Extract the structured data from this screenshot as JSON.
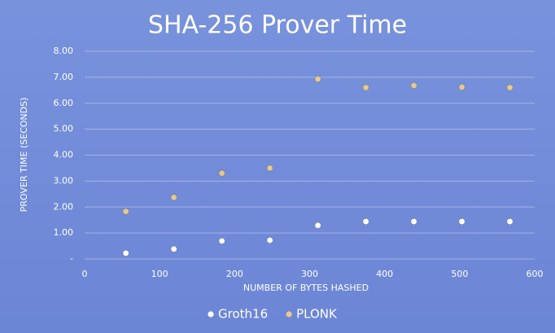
{
  "chart_data": {
    "type": "scatter",
    "title": "SHA-256 Prover Time",
    "x_label": "NUMBER OF BYTES HASHED",
    "y_label": "PROVER TIME (SECONDS)",
    "xlim": [
      0,
      600
    ],
    "xticks": [
      0,
      100,
      200,
      300,
      400,
      500,
      600
    ],
    "ylim": [
      0,
      8
    ],
    "yticks": [
      {
        "value": 0,
        "label": "-"
      },
      {
        "value": 1,
        "label": "1.00"
      },
      {
        "value": 2,
        "label": "2.00"
      },
      {
        "value": 3,
        "label": "3.00"
      },
      {
        "value": 4,
        "label": "4.00"
      },
      {
        "value": 5,
        "label": "5.00"
      },
      {
        "value": 6,
        "label": "6.00"
      },
      {
        "value": 7,
        "label": "7.00"
      },
      {
        "value": 8,
        "label": "8.00"
      }
    ],
    "grid": true,
    "legend": "bottom",
    "x": [
      55,
      119,
      183,
      247,
      311,
      375,
      439,
      503,
      567
    ],
    "series": [
      {
        "name": "Groth16",
        "color": "#ffffff",
        "values": [
          0.22,
          0.38,
          0.69,
          0.72,
          1.29,
          1.44,
          1.44,
          1.44,
          1.44
        ]
      },
      {
        "name": "PLONK",
        "color": "#e6c98c",
        "values": [
          1.83,
          2.37,
          3.3,
          3.5,
          6.93,
          6.6,
          6.68,
          6.62,
          6.6
        ]
      }
    ]
  }
}
